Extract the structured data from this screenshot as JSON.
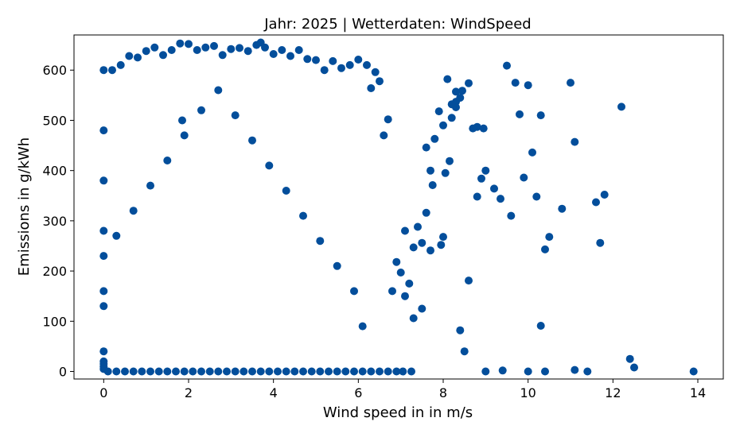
{
  "chart_data": {
    "type": "scatter",
    "title": "Jahr: 2025 | Wetterdaten: WindSpeed",
    "xlabel": "Wind speed in in m/s",
    "ylabel": "Emissions in g/kWh",
    "xlim": [
      -0.7,
      14.6
    ],
    "ylim": [
      -15,
      670
    ],
    "xticks": [
      0,
      2,
      4,
      6,
      8,
      10,
      12,
      14
    ],
    "yticks": [
      0,
      100,
      200,
      300,
      400,
      500,
      600
    ],
    "grid": false,
    "legend": "none",
    "marker_color": "#034e9b",
    "series": [
      {
        "x": [
          12.2,
          11.0,
          11.1,
          9.5,
          10.0,
          10.3,
          9.8,
          9.7,
          10.1,
          9.9,
          9.0,
          9.2,
          8.9,
          8.8,
          10.2,
          10.5,
          10.8,
          11.6,
          11.8,
          9.6,
          9.35,
          11.7,
          10.4,
          8.6,
          8.7,
          8.3,
          8.3,
          8.2,
          8.4,
          8.45,
          10.3,
          8.8,
          8.95,
          9.0,
          9.4,
          10.0,
          10.4,
          11.1,
          11.4,
          12.4,
          12.5,
          13.9,
          8.1,
          8.3,
          8.2,
          8.0,
          7.9,
          7.8,
          7.6,
          8.15,
          8.05,
          7.7,
          7.75,
          7.6,
          7.4,
          7.5,
          8.0,
          7.95,
          7.7,
          7.3,
          8.5,
          8.4,
          8.6,
          7.2,
          7.1,
          7.3,
          7.5,
          7.0,
          6.8,
          6.9,
          7.1,
          6.6,
          6.7,
          6.5,
          6.3,
          6.4,
          6.2,
          6.0,
          5.8,
          5.6,
          5.4,
          5.2,
          5.0,
          4.8,
          4.6,
          4.4,
          4.2,
          4.0,
          3.8,
          3.6,
          3.4,
          3.2,
          3.0,
          2.8,
          2.6,
          2.4,
          2.2,
          2.0,
          1.8,
          1.6,
          1.4,
          1.2,
          1.0,
          0.8,
          0.6,
          0.4,
          0.2,
          0.0,
          0.0,
          0.0,
          0.0,
          0.0,
          0.0,
          0.1,
          0.3,
          0.5,
          0.7,
          0.9,
          1.1,
          1.3,
          1.5,
          1.7,
          1.9,
          2.1,
          2.3,
          2.5,
          2.7,
          2.9,
          3.1,
          3.3,
          3.5,
          3.7,
          3.9,
          4.1,
          4.3,
          4.5,
          4.7,
          4.9,
          5.1,
          5.3,
          5.5,
          5.7,
          5.9,
          6.1,
          6.3,
          6.5,
          6.7,
          6.9,
          7.05,
          7.25,
          6.1,
          5.9,
          5.5,
          5.1,
          4.7,
          4.3,
          3.9,
          3.5,
          3.1,
          2.7,
          2.3,
          1.9,
          1.5,
          1.1,
          0.7,
          0.3,
          1.85,
          3.7,
          0.0,
          0.0,
          0.0,
          0.0,
          0.0,
          0.0
        ],
        "y": [
          527,
          575,
          457,
          609,
          570,
          510,
          512,
          575,
          436,
          386,
          400,
          364,
          384,
          348,
          348,
          268,
          324,
          337,
          352,
          310,
          344,
          256,
          243,
          574,
          484,
          537,
          526,
          532,
          545,
          559,
          91,
          487,
          484,
          0,
          2,
          0,
          0,
          3,
          0,
          25,
          8,
          0,
          582,
          557,
          505,
          490,
          518,
          463,
          446,
          419,
          395,
          400,
          371,
          316,
          288,
          256,
          268,
          252,
          241,
          247,
          40,
          82,
          181,
          175,
          150,
          106,
          125,
          197,
          160,
          218,
          280,
          470,
          502,
          578,
          564,
          596,
          610,
          621,
          610,
          604,
          618,
          600,
          620,
          622,
          640,
          628,
          640,
          632,
          645,
          650,
          638,
          644,
          642,
          630,
          648,
          645,
          640,
          652,
          653,
          640,
          630,
          645,
          638,
          625,
          628,
          610,
          600,
          600,
          480,
          380,
          280,
          160,
          40,
          0,
          0,
          0,
          0,
          0,
          0,
          0,
          0,
          0,
          0,
          0,
          0,
          0,
          0,
          0,
          0,
          0,
          0,
          0,
          0,
          0,
          0,
          0,
          0,
          0,
          0,
          0,
          0,
          0,
          0,
          0,
          0,
          0,
          0,
          0,
          0,
          0,
          90,
          160,
          210,
          260,
          310,
          360,
          410,
          460,
          510,
          560,
          520,
          470,
          420,
          370,
          320,
          270,
          500,
          655,
          5,
          10,
          15,
          20,
          130,
          230
        ]
      }
    ]
  }
}
